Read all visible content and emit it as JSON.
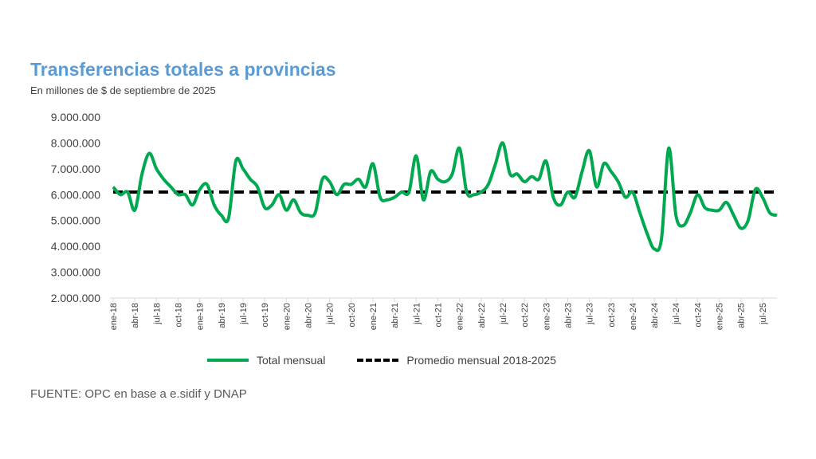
{
  "chart_data": {
    "type": "line",
    "title": "Transferencias totales a provincias",
    "subtitle": "En millones de $ de septiembre de 2025",
    "source": "FUENTE: OPC en base a e.sidif y DNAP",
    "ylim": [
      2000000,
      9000000
    ],
    "yticks": [
      "2.000.000",
      "3.000.000",
      "4.000.000",
      "5.000.000",
      "6.000.000",
      "7.000.000",
      "8.000.000",
      "9.000.000"
    ],
    "xtick_labels": [
      "ene-18",
      "abr-18",
      "jul-18",
      "oct-18",
      "ene-19",
      "abr-19",
      "jul-19",
      "oct-19",
      "ene-20",
      "abr-20",
      "jul-20",
      "oct-20",
      "ene-21",
      "abr-21",
      "jul-21",
      "oct-21",
      "ene-22",
      "abr-22",
      "jul-22",
      "oct-22",
      "ene-23",
      "abr-23",
      "jul-23",
      "oct-23",
      "ene-24",
      "abr-24",
      "jul-24",
      "oct-24",
      "ene-25",
      "abr-25",
      "jul-25"
    ],
    "grid": false,
    "legend_position": "bottom",
    "series": [
      {
        "name": "Total mensual",
        "color": "#00a84f",
        "style": "solid",
        "values": [
          6300000,
          6000000,
          6100000,
          5400000,
          6800000,
          7600000,
          7000000,
          6600000,
          6300000,
          6000000,
          6000000,
          5600000,
          6200000,
          6400000,
          5600000,
          5200000,
          5100000,
          7300000,
          7000000,
          6600000,
          6300000,
          5500000,
          5600000,
          6000000,
          5400000,
          5800000,
          5300000,
          5200000,
          5300000,
          6600000,
          6500000,
          6000000,
          6400000,
          6400000,
          6600000,
          6300000,
          7200000,
          5900000,
          5800000,
          5900000,
          6100000,
          6100000,
          7500000,
          5800000,
          6900000,
          6600000,
          6500000,
          6800000,
          7800000,
          6100000,
          6000000,
          6100000,
          6400000,
          7200000,
          8000000,
          6800000,
          6800000,
          6500000,
          6700000,
          6600000,
          7300000,
          5900000,
          5600000,
          6100000,
          5900000,
          6900000,
          7700000,
          6300000,
          7200000,
          6900000,
          6500000,
          5900000,
          6100000,
          5300000,
          4500000,
          3900000,
          4300000,
          7800000,
          5200000,
          4800000,
          5300000,
          6000000,
          5500000,
          5400000,
          5400000,
          5700000,
          5200000,
          4700000,
          5000000,
          6200000,
          5900000,
          5300000,
          5200000
        ]
      },
      {
        "name": "Promedio mensual 2018-2025",
        "color": "#000000",
        "style": "dashed",
        "value": 6100000
      }
    ]
  }
}
